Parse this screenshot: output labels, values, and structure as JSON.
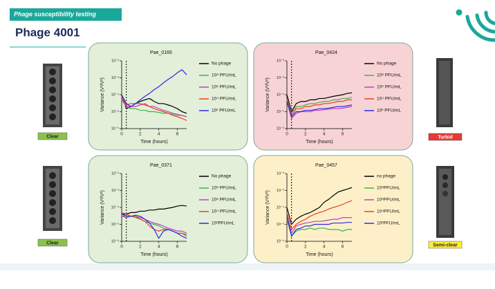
{
  "header": {
    "tag": "Phage susceptibility testing",
    "title": "Phage 4001"
  },
  "results": [
    {
      "label": "Clear",
      "color": "#8bc34a"
    },
    {
      "label": "Turbid",
      "color": "#e53935"
    },
    {
      "label": "Clear",
      "color": "#8bc34a"
    },
    {
      "label": "Semi-clear",
      "color": "#ffee33"
    }
  ],
  "chart_data": [
    {
      "type": "line",
      "title": "Pae_0165",
      "background": "#e3efd8",
      "xlabel": "Time (hours)",
      "ylabel": "Variance (V²/V²)",
      "log_y": true,
      "vline": 0.5,
      "x": [
        0,
        0.5,
        1,
        1.5,
        2,
        2.5,
        3,
        3.5,
        4,
        4.5,
        5,
        5.5,
        6,
        6.5,
        7
      ],
      "xlim": [
        0,
        7
      ],
      "xticks": [
        0,
        2,
        4,
        6
      ],
      "ylim": [
        1e-06,
        0.01
      ],
      "yticks": [
        {
          "value": 1e-06,
          "label": "10⁻⁶"
        },
        {
          "value": 1e-05,
          "label": "10⁻⁵"
        },
        {
          "value": 0.0001,
          "label": "10⁻⁴"
        },
        {
          "value": 0.001,
          "label": "10⁻³"
        },
        {
          "value": 0.01,
          "label": "10⁻²"
        }
      ],
      "series": [
        {
          "name": "No phage",
          "color": "#000000",
          "values": [
            0.0001,
            1.5e-05,
            2e-05,
            3e-05,
            4e-05,
            5e-05,
            6e-05,
            4e-05,
            3e-05,
            3e-05,
            2.5e-05,
            2e-05,
            1.5e-05,
            1e-05,
            8e-06
          ]
        },
        {
          "name": "10⁸ PFU/mL",
          "color": "#3cb44b",
          "values": [
            5e-05,
            2e-05,
            1.5e-05,
            1.5e-05,
            1.2e-05,
            1.2e-05,
            1e-05,
            1e-05,
            9e-06,
            8e-06,
            8e-06,
            7e-06,
            6e-06,
            6e-06,
            5e-06
          ]
        },
        {
          "name": "10⁶ PFU/mL",
          "color": "#c040c0",
          "values": [
            6e-05,
            2e-05,
            2e-05,
            2e-05,
            2.5e-05,
            3e-05,
            2e-05,
            2e-05,
            1.5e-05,
            1.2e-05,
            1e-05,
            8e-06,
            7e-06,
            6e-06,
            5e-06
          ]
        },
        {
          "name": "10⁴ PFU/mL",
          "color": "#e8402a",
          "values": [
            8e-05,
            2.5e-05,
            3e-05,
            3e-05,
            3e-05,
            2.5e-05,
            2e-05,
            1.5e-05,
            1.2e-05,
            1e-05,
            8e-06,
            6e-06,
            5e-06,
            4e-06,
            3e-06
          ]
        },
        {
          "name": "10² PFU/mL",
          "color": "#2a2ae8",
          "values": [
            0.0001,
            3e-05,
            2e-05,
            3e-05,
            5e-05,
            8e-05,
            0.00012,
            0.0002,
            0.0003,
            0.0005,
            0.0008,
            0.0012,
            0.002,
            0.003,
            0.0015
          ]
        }
      ]
    },
    {
      "type": "line",
      "title": "Pae_0424",
      "background": "#f8d3d5",
      "xlabel": "Time (hours)",
      "ylabel": "Variance (V²/V²)",
      "log_y": true,
      "vline": 0.5,
      "x": [
        0,
        0.5,
        1,
        1.5,
        2,
        2.5,
        3,
        3.5,
        4,
        4.5,
        5,
        5.5,
        6,
        6.5,
        7
      ],
      "xlim": [
        0,
        7
      ],
      "xticks": [
        0,
        2,
        4,
        6
      ],
      "ylim": [
        1e-06,
        0.01
      ],
      "yticks": [
        {
          "value": 1e-06,
          "label": "10⁻⁶"
        },
        {
          "value": 1e-05,
          "label": "10⁻⁵"
        },
        {
          "value": 0.0001,
          "label": "10⁻⁴"
        },
        {
          "value": 0.001,
          "label": "10⁻³"
        },
        {
          "value": 0.01,
          "label": "10⁻²"
        }
      ],
      "series": [
        {
          "name": "No phage",
          "color": "#000000",
          "values": [
            0.0001,
            1e-05,
            3e-05,
            4e-05,
            4e-05,
            5e-05,
            5e-05,
            6e-05,
            6e-05,
            7e-05,
            8e-05,
            9e-05,
            0.0001,
            0.00012,
            0.00013
          ]
        },
        {
          "name": "10⁸ PFU/mL",
          "color": "#3cb44b",
          "values": [
            6e-05,
            8e-06,
            2e-05,
            2e-05,
            2.5e-05,
            3e-05,
            3e-05,
            3.5e-05,
            4e-05,
            4e-05,
            5e-05,
            5e-05,
            6e-05,
            6e-05,
            7e-05
          ]
        },
        {
          "name": "10⁶ PFU/mL",
          "color": "#c040c0",
          "values": [
            4e-05,
            4e-06,
            8e-06,
            1e-05,
            1e-05,
            1e-05,
            1.2e-05,
            1.2e-05,
            1.3e-05,
            1.4e-05,
            1.5e-05,
            1.5e-05,
            1.6e-05,
            1.8e-05,
            2e-05
          ]
        },
        {
          "name": "10⁴ PFU/mL",
          "color": "#e8402a",
          "values": [
            5e-05,
            6e-06,
            1.5e-05,
            1.5e-05,
            2e-05,
            2e-05,
            2.5e-05,
            2.5e-05,
            3e-05,
            3e-05,
            3.5e-05,
            4e-05,
            4e-05,
            5e-05,
            5e-05
          ]
        },
        {
          "name": "10² PFU/mL",
          "color": "#2a2ae8",
          "values": [
            4e-05,
            5e-06,
            1e-05,
            1e-05,
            1.2e-05,
            1.2e-05,
            1.3e-05,
            1.5e-05,
            1.5e-05,
            1.6e-05,
            1.8e-05,
            2e-05,
            2e-05,
            2.2e-05,
            2.5e-05
          ]
        }
      ]
    },
    {
      "type": "line",
      "title": "Pae_0371",
      "background": "#e3efd8",
      "xlabel": "Time (hours)",
      "ylabel": "Variance (V²/V²)",
      "log_y": true,
      "vline": 0.5,
      "x": [
        0,
        0.5,
        1,
        1.5,
        2,
        2.5,
        3,
        3.5,
        4,
        4.5,
        5,
        5.5,
        6,
        6.5,
        7
      ],
      "xlim": [
        0,
        7
      ],
      "xticks": [
        0,
        2,
        4,
        6
      ],
      "ylim": [
        1e-06,
        0.01
      ],
      "yticks": [
        {
          "value": 1e-06,
          "label": "10⁻⁶"
        },
        {
          "value": 1e-05,
          "label": "10⁻⁵"
        },
        {
          "value": 0.0001,
          "label": "10⁻⁴"
        },
        {
          "value": 0.001,
          "label": "10⁻³"
        },
        {
          "value": 0.01,
          "label": "10⁻²"
        }
      ],
      "series": [
        {
          "name": "No phage",
          "color": "#000000",
          "values": [
            4e-05,
            4e-05,
            5e-05,
            5e-05,
            6e-05,
            6e-05,
            7e-05,
            7e-05,
            8e-05,
            8e-05,
            9e-05,
            0.0001,
            0.00012,
            0.00013,
            0.00012
          ]
        },
        {
          "name": "10⁸ PFU/mL",
          "color": "#3cb44b",
          "values": [
            3e-05,
            3e-05,
            3e-05,
            2.5e-05,
            2e-05,
            1.5e-05,
            1.2e-05,
            1e-05,
            8e-06,
            6e-06,
            5e-06,
            4e-06,
            3e-06,
            3e-06,
            2.5e-06
          ]
        },
        {
          "name": "10⁶ PFU/mL",
          "color": "#c040c0",
          "values": [
            3e-05,
            2.5e-05,
            3e-05,
            3e-05,
            2.5e-05,
            2e-05,
            1.5e-05,
            1.2e-05,
            1e-05,
            8e-06,
            6e-06,
            5e-06,
            4e-06,
            4e-06,
            3e-06
          ]
        },
        {
          "name": "10⁴ PFU/mL",
          "color": "#e8402a",
          "values": [
            5e-05,
            4e-05,
            3e-05,
            3e-05,
            2e-05,
            1.5e-05,
            8e-06,
            5e-06,
            4e-06,
            5e-06,
            5e-06,
            4e-06,
            3e-06,
            3e-06,
            2e-06
          ]
        },
        {
          "name": "10²PFU/mL",
          "color": "#2a2ae8",
          "values": [
            4e-05,
            3e-05,
            3e-05,
            3.5e-05,
            3e-05,
            2e-05,
            1.2e-05,
            5e-06,
            1.5e-06,
            4e-06,
            5e-06,
            4e-06,
            3e-06,
            2e-06,
            1.5e-06
          ]
        }
      ]
    },
    {
      "type": "line",
      "title": "Pae_0457",
      "background": "#fdf0c8",
      "xlabel": "Time (hours)",
      "ylabel": "Variance (V²/V²)",
      "log_y": true,
      "vline": 0.5,
      "x": [
        0,
        0.5,
        1,
        1.5,
        2,
        2.5,
        3,
        3.5,
        4,
        4.5,
        5,
        5.5,
        6,
        6.5,
        7
      ],
      "xlim": [
        0,
        7
      ],
      "xticks": [
        0,
        2,
        4,
        6
      ],
      "ylim": [
        1e-06,
        0.01
      ],
      "yticks": [
        {
          "value": 1e-06,
          "label": "10⁻⁶"
        },
        {
          "value": 1e-05,
          "label": "10⁻⁵"
        },
        {
          "value": 0.0001,
          "label": "10⁻⁴"
        },
        {
          "value": 0.001,
          "label": "10⁻³"
        },
        {
          "value": 0.01,
          "label": "10⁻²"
        }
      ],
      "series": [
        {
          "name": "no phage",
          "color": "#000000",
          "values": [
            0.0001,
            1e-05,
            2e-05,
            3e-05,
            4e-05,
            5e-05,
            7e-05,
            0.0001,
            0.0002,
            0.0003,
            0.0005,
            0.0008,
            0.001,
            0.0012,
            0.0015
          ]
        },
        {
          "name": "10⁸PFU/mL",
          "color": "#3cb44b",
          "values": [
            2e-05,
            2e-06,
            4e-06,
            5e-06,
            5e-06,
            6e-06,
            5e-06,
            6e-06,
            6e-06,
            5e-06,
            5e-06,
            5e-06,
            4e-06,
            5e-06,
            5e-06
          ]
        },
        {
          "name": "10⁶PFU/mL",
          "color": "#c040c0",
          "values": [
            3e-05,
            3e-06,
            8e-06,
            1e-05,
            1.2e-05,
            1.3e-05,
            1.5e-05,
            1.5e-05,
            1.6e-05,
            1.8e-05,
            2e-05,
            2e-05,
            2.5e-05,
            2.5e-05,
            2.5e-05
          ]
        },
        {
          "name": "10⁴PFU/mL",
          "color": "#e8402a",
          "values": [
            5e-05,
            5e-06,
            1e-05,
            1.5e-05,
            2e-05,
            3e-05,
            4e-05,
            5e-05,
            6e-05,
            8e-05,
            0.0001,
            0.00012,
            0.00015,
            0.0002,
            0.00025
          ]
        },
        {
          "name": "10²PFU/mL",
          "color": "#2a2ae8",
          "values": [
            3e-05,
            2e-06,
            5e-06,
            6e-06,
            8e-06,
            8e-06,
            1e-05,
            1e-05,
            1e-05,
            1e-05,
            1.2e-05,
            1.2e-05,
            1.2e-05,
            1.3e-05,
            1.3e-05
          ]
        }
      ]
    }
  ]
}
